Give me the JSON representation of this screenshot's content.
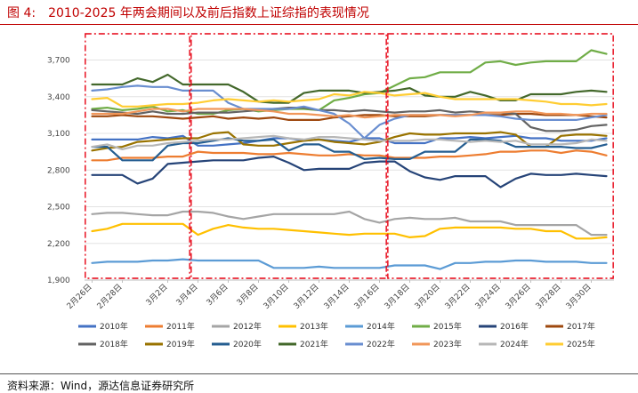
{
  "figure": {
    "title": "图 4:　2010-2025 年两会期间以及前后指数上证综指的表现情况",
    "source": "资料来源：Wind，源达信息证券研究所"
  },
  "colors": {
    "title": "#c00000",
    "highlight_box": "#e60012"
  },
  "chart_data": {
    "type": "line",
    "x": [
      "2月26日",
      "2月27日",
      "2月28日",
      "2月29日",
      "3月1日",
      "3月2日",
      "3月3日",
      "3月4日",
      "3月5日",
      "3月6日",
      "3月7日",
      "3月8日",
      "3月9日",
      "3月10日",
      "3月11日",
      "3月12日",
      "3月13日",
      "3月14日",
      "3月15日",
      "3月16日",
      "3月17日",
      "3月18日",
      "3月19日",
      "3月20日",
      "3月21日",
      "3月22日",
      "3月23日",
      "3月24日",
      "3月25日",
      "3月26日",
      "3月27日",
      "3月28日",
      "3月29日",
      "3月30日",
      "3月31日"
    ],
    "x_tick_labels": [
      "2月26日",
      "2月28日",
      "3月2日",
      "3月4日",
      "3月6日",
      "3月8日",
      "3月10日",
      "3月12日",
      "3月14日",
      "3月16日",
      "3月18日",
      "3月20日",
      "3月22日",
      "3月24日",
      "3月26日",
      "3月28日",
      "3月30日"
    ],
    "ylim": [
      1900,
      3900
    ],
    "yticks": [
      1900,
      2200,
      2500,
      2800,
      3100,
      3400,
      3700
    ],
    "ytick_labels": [
      "1,900",
      "2,200",
      "2,500",
      "2,800",
      "3,100",
      "3,400",
      "3,700"
    ],
    "grid": "horizontal",
    "legend_position": "bottom",
    "highlight_periods": [
      [
        "2月26日",
        "3月3日"
      ],
      [
        "3月4日",
        "3月16日"
      ],
      [
        "3月17日",
        "3月31日"
      ]
    ],
    "series": [
      {
        "name": "2010年",
        "color": "#4472c4",
        "values": [
          3050,
          3050,
          3050,
          3050,
          3070,
          3060,
          3080,
          3000,
          3000,
          3010,
          3020,
          3040,
          3060,
          3060,
          3040,
          3050,
          3040,
          3030,
          3060,
          3060,
          3020,
          3020,
          3020,
          3060,
          3060,
          3070,
          3060,
          3070,
          3080,
          3060,
          3060,
          3040,
          3040,
          3040,
          3060
        ]
      },
      {
        "name": "2011年",
        "color": "#ed7d31",
        "values": [
          2880,
          2880,
          2900,
          2900,
          2900,
          2910,
          2910,
          2950,
          2940,
          2940,
          2940,
          2930,
          2930,
          2940,
          2930,
          2920,
          2920,
          2930,
          2920,
          2920,
          2900,
          2900,
          2900,
          2910,
          2910,
          2920,
          2930,
          2950,
          2950,
          2960,
          2960,
          2940,
          2960,
          2950,
          2920
        ]
      },
      {
        "name": "2012年",
        "color": "#a5a5a5",
        "values": [
          2440,
          2450,
          2450,
          2440,
          2430,
          2430,
          2460,
          2460,
          2450,
          2420,
          2400,
          2420,
          2440,
          2440,
          2440,
          2440,
          2440,
          2460,
          2400,
          2370,
          2400,
          2410,
          2400,
          2400,
          2410,
          2380,
          2380,
          2380,
          2350,
          2350,
          2350,
          2350,
          2350,
          2270,
          2270
        ]
      },
      {
        "name": "2013年",
        "color": "#ffc000",
        "values": [
          2300,
          2320,
          2360,
          2360,
          2360,
          2360,
          2360,
          2270,
          2320,
          2350,
          2330,
          2320,
          2320,
          2310,
          2300,
          2290,
          2280,
          2270,
          2280,
          2280,
          2280,
          2250,
          2260,
          2320,
          2330,
          2330,
          2330,
          2330,
          2320,
          2320,
          2300,
          2300,
          2240,
          2240,
          2250
        ]
      },
      {
        "name": "2014年",
        "color": "#5b9bd5",
        "values": [
          2040,
          2050,
          2050,
          2050,
          2060,
          2060,
          2070,
          2060,
          2060,
          2060,
          2060,
          2060,
          2000,
          2000,
          2000,
          2010,
          2000,
          2000,
          2000,
          2000,
          2020,
          2020,
          2020,
          1990,
          2040,
          2040,
          2050,
          2050,
          2060,
          2060,
          2050,
          2050,
          2050,
          2040,
          2040
        ]
      },
      {
        "name": "2015年",
        "color": "#70ad47",
        "values": [
          3300,
          3310,
          3290,
          3300,
          3320,
          3280,
          3290,
          3260,
          3260,
          3290,
          3300,
          3280,
          3290,
          3300,
          3300,
          3290,
          3370,
          3390,
          3420,
          3430,
          3490,
          3550,
          3560,
          3600,
          3600,
          3600,
          3680,
          3690,
          3660,
          3680,
          3690,
          3690,
          3690,
          3780,
          3750
        ]
      },
      {
        "name": "2016年",
        "color": "#264478",
        "values": [
          2760,
          2760,
          2760,
          2690,
          2730,
          2850,
          2860,
          2870,
          2880,
          2880,
          2880,
          2900,
          2910,
          2860,
          2800,
          2810,
          2810,
          2810,
          2860,
          2870,
          2870,
          2790,
          2740,
          2720,
          2750,
          2750,
          2750,
          2660,
          2730,
          2770,
          2760,
          2760,
          2770,
          2760,
          2750
        ]
      },
      {
        "name": "2017年",
        "color": "#9e480e",
        "values": [
          3240,
          3240,
          3250,
          3240,
          3240,
          3230,
          3220,
          3230,
          3240,
          3220,
          3230,
          3220,
          3230,
          3210,
          3210,
          3210,
          3230,
          3240,
          3250,
          3250,
          3240,
          3240,
          3240,
          3250,
          3250,
          3250,
          3250,
          3250,
          3260,
          3260,
          3250,
          3250,
          3250,
          3240,
          3230
        ]
      },
      {
        "name": "2018年",
        "color": "#636363",
        "values": [
          3290,
          3280,
          3270,
          3260,
          3280,
          3260,
          3260,
          3270,
          3270,
          3270,
          3280,
          3290,
          3300,
          3310,
          3310,
          3290,
          3290,
          3280,
          3290,
          3280,
          3270,
          3280,
          3280,
          3290,
          3270,
          3280,
          3270,
          3270,
          3260,
          3150,
          3120,
          3120,
          3130,
          3160,
          3170
        ]
      },
      {
        "name": "2019年",
        "color": "#997300",
        "values": [
          2960,
          2980,
          2990,
          3030,
          3040,
          3050,
          3060,
          3060,
          3100,
          3110,
          3010,
          3000,
          3000,
          3020,
          3040,
          3050,
          3030,
          3020,
          3010,
          3030,
          3070,
          3100,
          3090,
          3090,
          3100,
          3100,
          3100,
          3110,
          3090,
          2990,
          2990,
          3080,
          3090,
          3090,
          3080
        ]
      },
      {
        "name": "2020年",
        "color": "#255e91",
        "values": [
          2990,
          2990,
          2880,
          2880,
          2880,
          3000,
          3020,
          3020,
          3040,
          3060,
          3040,
          3040,
          3050,
          2960,
          3010,
          3010,
          2950,
          2950,
          2890,
          2900,
          2890,
          2890,
          2950,
          2950,
          2950,
          3050,
          3050,
          3040,
          2990,
          2990,
          2990,
          2990,
          2980,
          2980,
          3010
        ]
      },
      {
        "name": "2021年",
        "color": "#43682b",
        "values": [
          3500,
          3500,
          3500,
          3550,
          3520,
          3580,
          3500,
          3500,
          3500,
          3500,
          3440,
          3360,
          3350,
          3350,
          3430,
          3450,
          3450,
          3450,
          3430,
          3440,
          3450,
          3470,
          3410,
          3400,
          3400,
          3440,
          3410,
          3370,
          3370,
          3420,
          3420,
          3420,
          3440,
          3450,
          3440
        ]
      },
      {
        "name": "2022年",
        "color": "#698ed0",
        "values": [
          3450,
          3460,
          3480,
          3490,
          3480,
          3480,
          3450,
          3450,
          3450,
          3350,
          3300,
          3300,
          3300,
          3300,
          3320,
          3290,
          3260,
          3180,
          3060,
          3170,
          3220,
          3250,
          3250,
          3250,
          3250,
          3250,
          3250,
          3240,
          3220,
          3210,
          3210,
          3210,
          3210,
          3230,
          3250
        ]
      },
      {
        "name": "2023年",
        "color": "#f1975a",
        "values": [
          3260,
          3260,
          3260,
          3280,
          3300,
          3300,
          3280,
          3300,
          3300,
          3300,
          3300,
          3290,
          3280,
          3260,
          3260,
          3250,
          3240,
          3250,
          3230,
          3240,
          3250,
          3250,
          3250,
          3250,
          3240,
          3250,
          3270,
          3270,
          3280,
          3280,
          3260,
          3260,
          3250,
          3260,
          3260
        ]
      },
      {
        "name": "2024年",
        "color": "#b7b7b7",
        "values": [
          2990,
          3010,
          2970,
          3000,
          3000,
          3020,
          3030,
          3040,
          3050,
          3050,
          3060,
          3070,
          3080,
          3060,
          3050,
          3070,
          3070,
          3060,
          3050,
          3040,
          3040,
          3040,
          3050,
          3050,
          3040,
          3030,
          3040,
          3030,
          3040,
          3010,
          3010,
          3010,
          3020,
          3050,
          3040
        ]
      },
      {
        "name": "2025年",
        "color": "#ffcd33",
        "values": [
          3380,
          3390,
          3320,
          3320,
          3330,
          3340,
          3340,
          3350,
          3370,
          3380,
          3370,
          3360,
          3370,
          3360,
          3370,
          3380,
          3420,
          3410,
          3440,
          3430,
          3410,
          3420,
          3430,
          3400,
          3380,
          3380,
          3380,
          3380,
          3380,
          3370,
          3360,
          3340,
          3340,
          3330,
          3340
        ]
      }
    ]
  }
}
